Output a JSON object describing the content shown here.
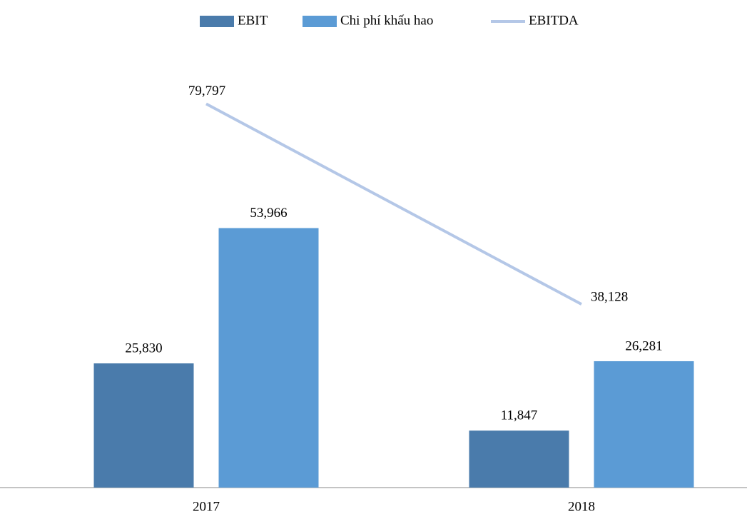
{
  "chart_data": {
    "type": "bar",
    "categories": [
      "2017",
      "2018"
    ],
    "series": [
      {
        "name": "EBIT",
        "type": "bar",
        "color": "#4a7bab",
        "values": [
          25830,
          11847
        ],
        "value_labels": [
          "25,830",
          "11,847"
        ]
      },
      {
        "name": "Chi  phí khấu hao",
        "type": "bar",
        "color": "#5b9bd5",
        "values": [
          53966,
          26281
        ],
        "value_labels": [
          "53,966",
          "26,281"
        ]
      },
      {
        "name": "EBITDA",
        "type": "line",
        "color": "#b4c7e7",
        "values": [
          79797,
          38128
        ],
        "value_labels": [
          "79,797",
          "38,128"
        ]
      }
    ],
    "ylim": [
      0,
      100000
    ],
    "legend": "top"
  }
}
